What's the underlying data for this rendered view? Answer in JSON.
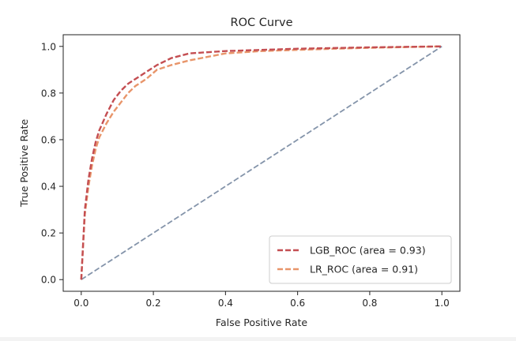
{
  "chart_data": {
    "type": "line",
    "title": "ROC Curve",
    "xlabel": "False Positive Rate",
    "ylabel": "True Positive Rate",
    "xlim": [
      -0.05,
      1.05
    ],
    "ylim": [
      -0.05,
      1.05
    ],
    "xticks": [
      0.0,
      0.2,
      0.4,
      0.6,
      0.8,
      1.0
    ],
    "yticks": [
      0.0,
      0.2,
      0.4,
      0.6,
      0.8,
      1.0
    ],
    "xtick_labels": [
      "0.0",
      "0.2",
      "0.4",
      "0.6",
      "0.8",
      "1.0"
    ],
    "ytick_labels": [
      "0.0",
      "0.2",
      "0.4",
      "0.6",
      "0.8",
      "1.0"
    ],
    "grid": false,
    "legend_position": "lower-right",
    "series": [
      {
        "name": "LGB_ROC (area = 0.93)",
        "color": "#c44e52",
        "style": "dashed",
        "x": [
          0.0,
          0.005,
          0.01,
          0.02,
          0.03,
          0.04,
          0.05,
          0.07,
          0.09,
          0.11,
          0.13,
          0.15,
          0.18,
          0.21,
          0.25,
          0.3,
          0.35,
          0.4,
          0.5,
          0.6,
          0.7,
          0.8,
          0.9,
          1.0
        ],
        "y": [
          0.0,
          0.15,
          0.3,
          0.43,
          0.52,
          0.59,
          0.64,
          0.71,
          0.77,
          0.81,
          0.84,
          0.86,
          0.89,
          0.92,
          0.95,
          0.97,
          0.975,
          0.98,
          0.985,
          0.99,
          0.993,
          0.996,
          0.998,
          1.0
        ]
      },
      {
        "name": "LR_ROC (area = 0.91)",
        "color": "#e8956a",
        "style": "dashed",
        "x": [
          0.0,
          0.005,
          0.01,
          0.02,
          0.03,
          0.04,
          0.05,
          0.07,
          0.09,
          0.11,
          0.13,
          0.15,
          0.18,
          0.21,
          0.25,
          0.3,
          0.35,
          0.4,
          0.5,
          0.6,
          0.7,
          0.8,
          0.9,
          1.0
        ],
        "y": [
          0.0,
          0.14,
          0.28,
          0.4,
          0.49,
          0.56,
          0.61,
          0.67,
          0.72,
          0.76,
          0.8,
          0.83,
          0.86,
          0.9,
          0.92,
          0.94,
          0.955,
          0.97,
          0.98,
          0.985,
          0.99,
          0.994,
          0.997,
          1.0
        ]
      },
      {
        "name": "",
        "color": "#8494aa",
        "style": "dashed",
        "x": [
          0.0,
          1.0
        ],
        "y": [
          0.0,
          1.0
        ]
      }
    ]
  }
}
